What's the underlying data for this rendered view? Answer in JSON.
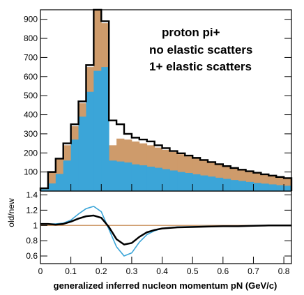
{
  "colors": {
    "no_elastic": "#CE9B6B",
    "one_plus_elastic": "#3BA5D8",
    "total_outline": "#000000",
    "ratio_reference": "#CE9B6B",
    "ratio_blue": "#3BA5D8",
    "ratio_black": "#000000"
  },
  "legend": {
    "title": "proton pi+",
    "items": [
      "no elastic scatters",
      "1+ elastic scatters"
    ]
  },
  "chart_data": [
    {
      "type": "bar",
      "panel": "top",
      "xlim": [
        0,
        0.825
      ],
      "ylim": [
        0,
        950
      ],
      "yticks": [
        "100",
        "200",
        "300",
        "400",
        "500",
        "600",
        "700",
        "800",
        "900"
      ],
      "ytick_values": [
        100,
        200,
        300,
        400,
        500,
        600,
        700,
        800,
        900
      ],
      "xticks": [
        "0",
        "0.1",
        "0.2",
        "0.3",
        "0.4",
        "0.5",
        "0.6",
        "0.7",
        "0.8"
      ],
      "xtick_values": [
        0,
        0.1,
        0.2,
        0.3,
        0.4,
        0.5,
        0.6,
        0.7,
        0.8
      ],
      "bin_width": 0.025,
      "bin_starts": [
        0,
        0.025,
        0.05,
        0.075,
        0.1,
        0.125,
        0.15,
        0.175,
        0.2,
        0.225,
        0.25,
        0.275,
        0.3,
        0.325,
        0.35,
        0.375,
        0.4,
        0.425,
        0.45,
        0.475,
        0.5,
        0.525,
        0.55,
        0.575,
        0.6,
        0.625,
        0.65,
        0.675,
        0.7,
        0.725,
        0.75,
        0.775,
        0.8
      ],
      "series": [
        {
          "name": "1+ elastic scatters",
          "values": [
            10,
            40,
            90,
            160,
            270,
            390,
            520,
            630,
            650,
            160,
            155,
            150,
            140,
            135,
            128,
            122,
            115,
            108,
            100,
            95,
            88,
            82,
            76,
            70,
            64,
            58,
            53,
            48,
            43,
            39,
            35,
            31,
            28
          ]
        },
        {
          "name": "no elastic scatters",
          "values": [
            15,
            100,
            170,
            240,
            340,
            460,
            650,
            950,
            880,
            240,
            275,
            270,
            260,
            250,
            240,
            228,
            216,
            205,
            193,
            182,
            170,
            160,
            150,
            140,
            130,
            120,
            112,
            104,
            96,
            88,
            81,
            74,
            68
          ]
        },
        {
          "name": "proton pi+",
          "values": [
            15,
            100,
            170,
            250,
            350,
            470,
            660,
            950,
            890,
            370,
            350,
            300,
            280,
            270,
            260,
            240,
            225,
            210,
            198,
            186,
            174,
            163,
            152,
            141,
            131,
            121,
            112,
            104,
            96,
            88,
            81,
            74,
            68
          ]
        }
      ]
    },
    {
      "type": "line",
      "panel": "bottom",
      "ytitle": "old/new",
      "xlabel": "generalized inferred nucleon momentum pN (GeV/c)",
      "xlim": [
        0,
        0.825
      ],
      "ylim": [
        0.5,
        1.45
      ],
      "yticks": [
        "0.6",
        "0.8",
        "1",
        "1.2",
        "1.4"
      ],
      "ytick_values": [
        0.6,
        0.8,
        1.0,
        1.2,
        1.4
      ],
      "x": [
        0,
        0.025,
        0.05,
        0.075,
        0.1,
        0.125,
        0.15,
        0.175,
        0.2,
        0.225,
        0.25,
        0.275,
        0.3,
        0.325,
        0.35,
        0.375,
        0.4,
        0.45,
        0.5,
        0.55,
        0.6,
        0.65,
        0.7,
        0.75,
        0.8,
        0.825
      ],
      "series": [
        {
          "name": "no elastic scatters",
          "values": [
            1,
            1,
            1,
            1,
            1,
            1,
            1,
            1,
            1,
            1,
            1,
            1,
            1,
            1,
            1,
            1,
            1,
            1,
            1,
            1,
            1,
            1,
            1,
            1,
            1,
            1
          ]
        },
        {
          "name": "1+ elastic scatters",
          "values": [
            1.02,
            1.02,
            1.02,
            1.03,
            1.07,
            1.15,
            1.22,
            1.25,
            1.18,
            0.95,
            0.72,
            0.6,
            0.64,
            0.78,
            0.88,
            0.93,
            0.96,
            0.98,
            0.985,
            0.99,
            0.99,
            0.99,
            0.995,
            1.0,
            1.0,
            1.0
          ]
        },
        {
          "name": "proton pi+",
          "values": [
            1.02,
            1.02,
            1.01,
            1.02,
            1.05,
            1.09,
            1.12,
            1.13,
            1.1,
            0.98,
            0.82,
            0.75,
            0.77,
            0.85,
            0.91,
            0.94,
            0.96,
            0.975,
            0.98,
            0.985,
            0.99,
            0.99,
            0.995,
            1.0,
            1.0,
            1.0
          ]
        }
      ]
    }
  ]
}
